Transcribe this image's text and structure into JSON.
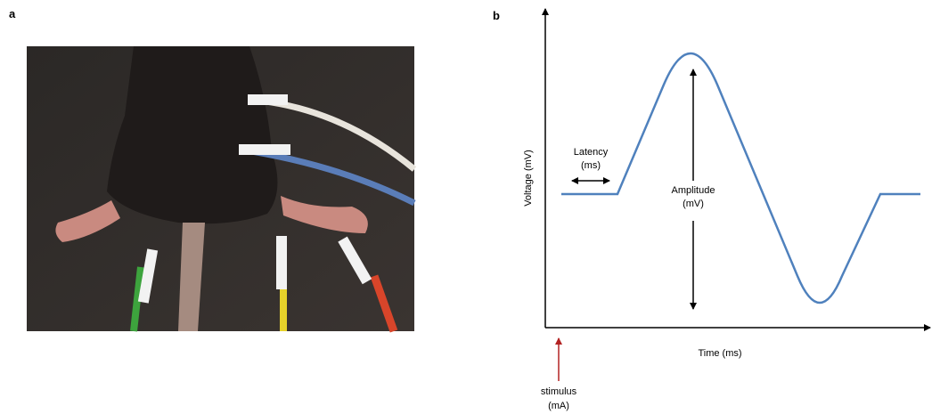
{
  "panel_a": {
    "label": "a"
  },
  "panel_b": {
    "label": "b",
    "y_axis_label": "Voltage (mV)",
    "x_axis_label": "Time (ms)",
    "latency_label": [
      "Latency",
      "(ms)"
    ],
    "amplitude_label": [
      "Amplitude",
      "(mV)"
    ],
    "stimulus_label": [
      "stimulus",
      "(mA)"
    ]
  }
}
